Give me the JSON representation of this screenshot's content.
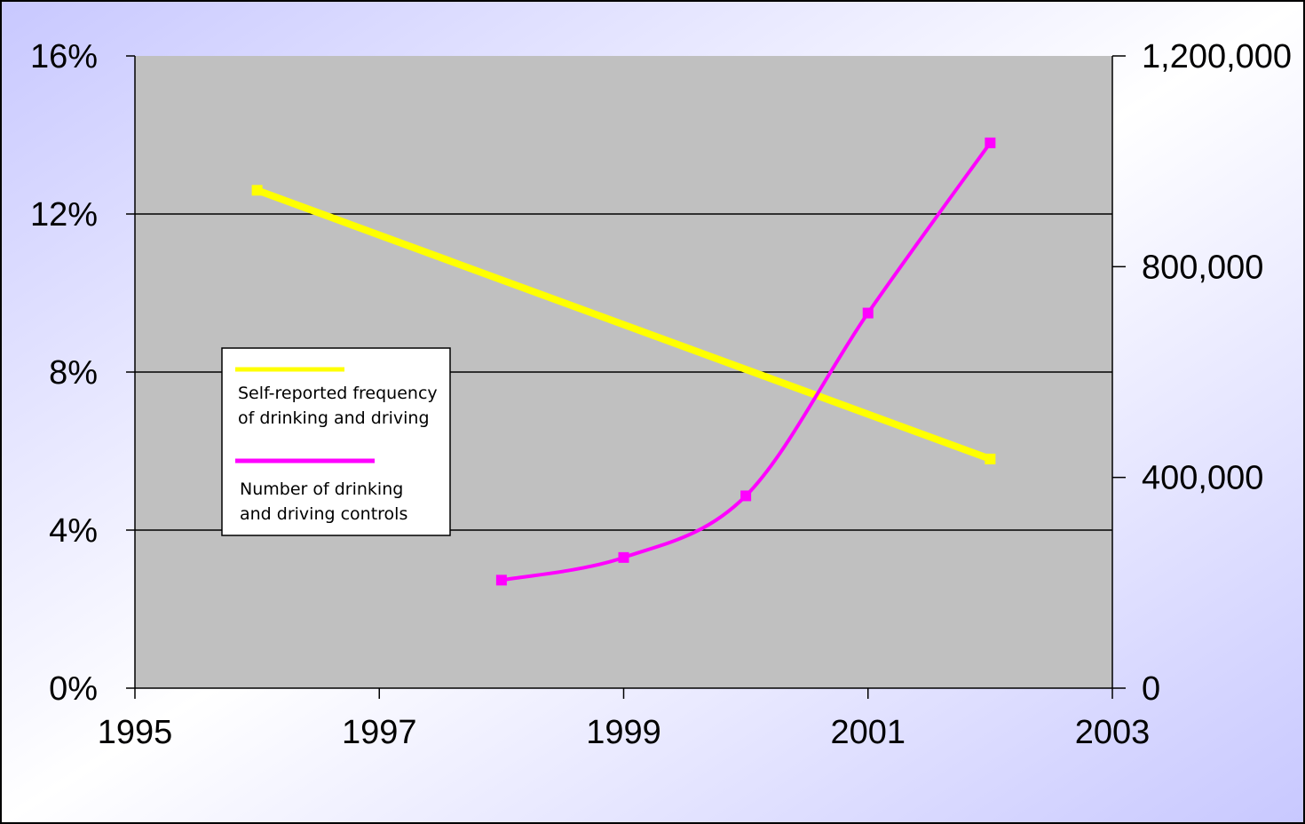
{
  "chart_data": {
    "type": "line",
    "x_ticks": [
      "1995",
      "1997",
      "1999",
      "2001",
      "2003"
    ],
    "xlim": [
      1995,
      2003
    ],
    "y_left": {
      "ticks": [
        "0%",
        "4%",
        "8%",
        "12%",
        "16%"
      ],
      "lim": [
        0,
        16
      ],
      "unit": "%"
    },
    "y_right": {
      "ticks": [
        "0",
        "400,000",
        "800,000",
        "1,200,000"
      ],
      "lim": [
        0,
        1200000
      ]
    },
    "grid": true,
    "legend_position": "left-center",
    "series": [
      {
        "name": "Self-reported frequency of drinking and driving",
        "axis": "left",
        "color": "#ffff00",
        "points": [
          {
            "x": 1996,
            "y": 12.6
          },
          {
            "x": 2002,
            "y": 5.8
          }
        ]
      },
      {
        "name": "Number of drinking and driving controls",
        "axis": "right",
        "color": "#ff00ff",
        "points": [
          {
            "x": 1998,
            "y": 205000
          },
          {
            "x": 1999,
            "y": 248000
          },
          {
            "x": 2000,
            "y": 365000
          },
          {
            "x": 2001,
            "y": 712000
          },
          {
            "x": 2002,
            "y": 1035000
          }
        ]
      }
    ],
    "legend": {
      "line1": "Self-reported frequency",
      "line2": "of drinking and driving",
      "line3": "Number of drinking",
      "line4": "and driving controls"
    }
  },
  "colors": {
    "plot_bg": "#c0c0c0",
    "bg_start": "#c8c8ff",
    "bg_mid": "#ffffff",
    "bg_end": "#c8c8ff"
  }
}
